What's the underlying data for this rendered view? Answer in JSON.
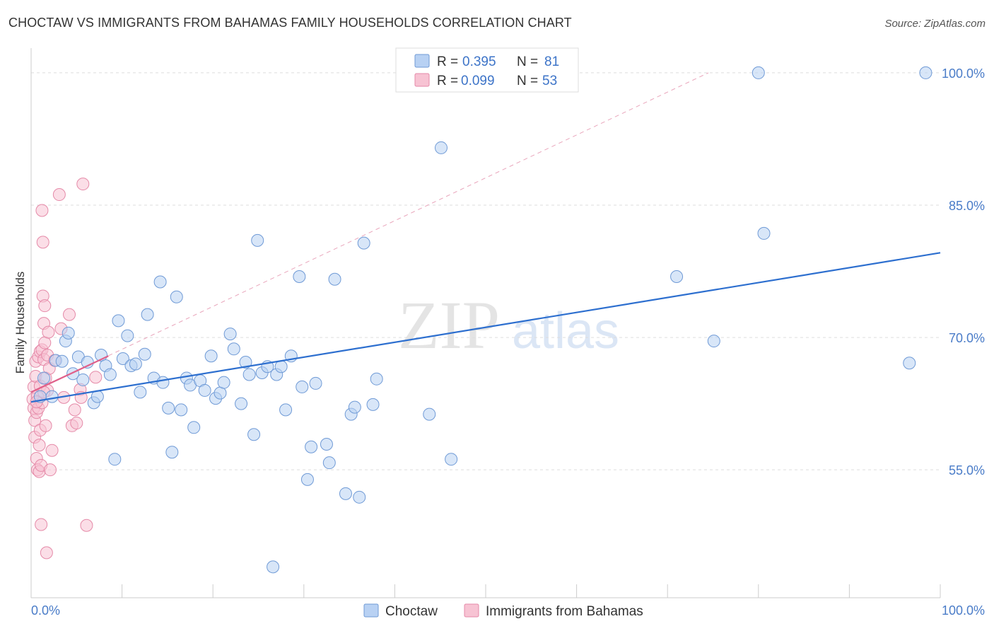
{
  "title": "CHOCTAW VS IMMIGRANTS FROM BAHAMAS FAMILY HOUSEHOLDS CORRELATION CHART",
  "source": "Source: ZipAtlas.com",
  "watermark": {
    "zip": "ZIP",
    "atlas": "atlas"
  },
  "legend": {
    "choctaw": {
      "r_label": "R =",
      "r": "0.395",
      "n_label": "N =",
      "n": "81"
    },
    "bahamas": {
      "r_label": "R =",
      "r": "0.099",
      "n_label": "N =",
      "n": "53"
    }
  },
  "colors": {
    "choctaw_fill": "#b8d1f3",
    "choctaw_stroke": "#6f9ad6",
    "choctaw_line": "#2d6fcf",
    "bahamas_fill": "#f7c3d3",
    "bahamas_stroke": "#e58aa8",
    "bahamas_line": "#e0608a",
    "grid": "#dddddd",
    "axis_text": "#4a7cc8"
  },
  "chart_data": {
    "type": "scatter",
    "title": "CHOCTAW VS IMMIGRANTS FROM BAHAMAS FAMILY HOUSEHOLDS CORRELATION CHART",
    "xlabel": "",
    "ylabel": "Family Households",
    "xlim": [
      0,
      100
    ],
    "ylim": [
      40.5,
      102.8
    ],
    "x_tick_labels": [
      "0.0%",
      "100.0%"
    ],
    "y_ticks": [
      55,
      70,
      85,
      100
    ],
    "y_tick_labels": [
      "55.0%",
      "70.0%",
      "85.0%",
      "100.0%"
    ],
    "grid": true,
    "legend_position": "top-center",
    "series": [
      {
        "name": "Choctaw",
        "r": 0.395,
        "n": 81,
        "trend": {
          "x0": 0,
          "y0": 62.7,
          "x1": 100,
          "y1": 79.6
        },
        "points": [
          [
            1.0,
            63.3
          ],
          [
            1.4,
            65.4
          ],
          [
            2.3,
            63.3
          ],
          [
            2.7,
            67.4
          ],
          [
            3.4,
            67.3
          ],
          [
            3.8,
            69.6
          ],
          [
            4.1,
            70.5
          ],
          [
            4.6,
            65.9
          ],
          [
            5.2,
            67.8
          ],
          [
            5.7,
            65.2
          ],
          [
            6.2,
            67.2
          ],
          [
            6.9,
            62.6
          ],
          [
            7.3,
            63.3
          ],
          [
            7.7,
            68.0
          ],
          [
            8.2,
            66.8
          ],
          [
            8.7,
            65.8
          ],
          [
            9.2,
            56.2
          ],
          [
            9.6,
            71.9
          ],
          [
            10.1,
            67.6
          ],
          [
            10.6,
            70.2
          ],
          [
            11.0,
            66.8
          ],
          [
            11.5,
            67.0
          ],
          [
            12.0,
            63.8
          ],
          [
            12.5,
            68.1
          ],
          [
            12.8,
            72.6
          ],
          [
            13.5,
            65.4
          ],
          [
            14.2,
            76.3
          ],
          [
            14.5,
            64.9
          ],
          [
            15.1,
            62.0
          ],
          [
            15.5,
            57.0
          ],
          [
            16.0,
            74.6
          ],
          [
            16.5,
            61.8
          ],
          [
            17.1,
            65.4
          ],
          [
            17.5,
            64.6
          ],
          [
            17.9,
            59.8
          ],
          [
            18.6,
            65.1
          ],
          [
            19.1,
            64.0
          ],
          [
            19.8,
            67.9
          ],
          [
            20.3,
            63.1
          ],
          [
            20.8,
            63.7
          ],
          [
            21.2,
            64.9
          ],
          [
            21.9,
            70.4
          ],
          [
            22.3,
            68.7
          ],
          [
            23.1,
            62.5
          ],
          [
            23.6,
            67.2
          ],
          [
            24.0,
            65.8
          ],
          [
            24.5,
            59.0
          ],
          [
            24.9,
            81.0
          ],
          [
            25.4,
            66.0
          ],
          [
            26.0,
            66.7
          ],
          [
            26.6,
            44.0
          ],
          [
            27.0,
            65.8
          ],
          [
            27.5,
            66.7
          ],
          [
            28.0,
            61.8
          ],
          [
            28.6,
            67.9
          ],
          [
            29.5,
            76.9
          ],
          [
            29.8,
            64.4
          ],
          [
            30.4,
            53.9
          ],
          [
            30.8,
            57.6
          ],
          [
            31.3,
            64.8
          ],
          [
            32.5,
            57.9
          ],
          [
            32.8,
            55.8
          ],
          [
            33.4,
            76.6
          ],
          [
            34.6,
            52.3
          ],
          [
            35.2,
            61.3
          ],
          [
            35.6,
            62.1
          ],
          [
            36.1,
            51.9
          ],
          [
            36.6,
            80.7
          ],
          [
            37.6,
            62.4
          ],
          [
            38.0,
            65.3
          ],
          [
            43.8,
            61.3
          ],
          [
            45.1,
            91.5
          ],
          [
            46.2,
            56.2
          ],
          [
            71.0,
            76.9
          ],
          [
            75.1,
            69.6
          ],
          [
            80.0,
            100.0
          ],
          [
            80.6,
            81.8
          ],
          [
            96.6,
            67.1
          ],
          [
            98.4,
            100.0
          ]
        ]
      },
      {
        "name": "Immigrants from Bahamas",
        "r": 0.099,
        "n": 53,
        "trend": {
          "x0": 0,
          "y0": 63.8,
          "x1": 8.5,
          "y1": 67.9
        },
        "dashed_trend": {
          "x0": 0,
          "y0": 63.8,
          "x1": 74.5,
          "y1": 100.0
        },
        "points": [
          [
            0.2,
            63.0
          ],
          [
            0.3,
            64.4
          ],
          [
            0.3,
            62.0
          ],
          [
            0.4,
            60.6
          ],
          [
            0.4,
            58.7
          ],
          [
            0.5,
            65.6
          ],
          [
            0.5,
            67.3
          ],
          [
            0.6,
            61.5
          ],
          [
            0.6,
            56.3
          ],
          [
            0.7,
            55.0
          ],
          [
            0.7,
            63.4
          ],
          [
            0.8,
            67.8
          ],
          [
            0.8,
            62.0
          ],
          [
            0.9,
            57.8
          ],
          [
            0.9,
            54.8
          ],
          [
            1.0,
            68.4
          ],
          [
            1.0,
            64.5
          ],
          [
            1.0,
            59.5
          ],
          [
            1.1,
            55.5
          ],
          [
            1.1,
            48.8
          ],
          [
            1.2,
            84.4
          ],
          [
            1.2,
            68.6
          ],
          [
            1.2,
            62.6
          ],
          [
            1.3,
            80.8
          ],
          [
            1.3,
            74.7
          ],
          [
            1.4,
            71.6
          ],
          [
            1.4,
            67.5
          ],
          [
            1.5,
            69.4
          ],
          [
            1.5,
            73.6
          ],
          [
            1.6,
            65.4
          ],
          [
            1.6,
            60.0
          ],
          [
            1.7,
            45.6
          ],
          [
            1.8,
            68.0
          ],
          [
            1.8,
            64.0
          ],
          [
            1.9,
            70.6
          ],
          [
            2.0,
            66.5
          ],
          [
            2.1,
            55.0
          ],
          [
            2.3,
            57.2
          ],
          [
            3.1,
            86.2
          ],
          [
            3.3,
            71.0
          ],
          [
            3.6,
            63.2
          ],
          [
            4.2,
            72.6
          ],
          [
            4.5,
            60.0
          ],
          [
            4.8,
            61.8
          ],
          [
            5.0,
            60.3
          ],
          [
            5.4,
            64.1
          ],
          [
            5.5,
            63.2
          ],
          [
            5.7,
            87.4
          ],
          [
            6.1,
            48.7
          ],
          [
            7.1,
            65.5
          ],
          [
            0.6,
            62.7
          ],
          [
            1.4,
            63.8
          ],
          [
            2.6,
            67.4
          ]
        ]
      }
    ]
  }
}
